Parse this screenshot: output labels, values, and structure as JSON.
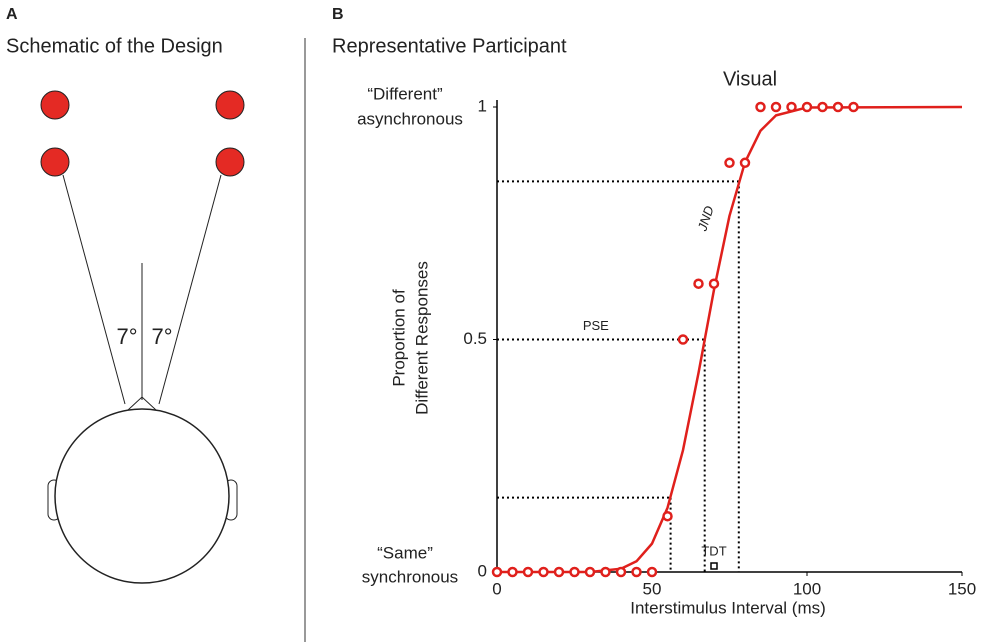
{
  "panel_a": {
    "label": "A",
    "title": "Schematic of the Design",
    "angle_left": "7°",
    "angle_right": "7°"
  },
  "chart_data": {
    "type": "scatter",
    "panel_label": "B",
    "title": "Representative Participant",
    "subtitle": "Visual",
    "x_label": "Interstimulus Interval (ms)",
    "y_label": [
      "Proportion of",
      "Different Responses"
    ],
    "y_category_labels": [
      {
        "value": 0,
        "label": [
          "“Same”",
          "synchronous"
        ]
      },
      {
        "value": 1,
        "label": [
          "“Different”",
          "asynchronous"
        ]
      }
    ],
    "xlim": [
      0,
      150
    ],
    "ylim": [
      0,
      1
    ],
    "xticks": [
      0,
      50,
      100,
      150
    ],
    "yticks": [
      0,
      0.5,
      1
    ],
    "points": {
      "color": "#e0201c",
      "x": [
        0,
        5,
        10,
        15,
        20,
        25,
        30,
        35,
        40,
        45,
        50,
        55,
        60,
        65,
        70,
        75,
        80,
        85,
        90,
        95,
        100,
        105,
        110,
        115
      ],
      "values": [
        0,
        0,
        0,
        0,
        0,
        0,
        0,
        0,
        0,
        0,
        0,
        0.12,
        0.5,
        0.62,
        0.62,
        0.88,
        0.88,
        1,
        1,
        1,
        1,
        1,
        1,
        1
      ]
    },
    "fit": {
      "color": "#e0201c",
      "x": [
        0,
        30,
        40,
        45,
        50,
        55,
        60,
        65,
        70,
        75,
        80,
        85,
        90,
        100,
        150
      ],
      "values": [
        0,
        0,
        0.007,
        0.023,
        0.061,
        0.138,
        0.262,
        0.428,
        0.607,
        0.766,
        0.881,
        0.949,
        0.982,
        0.999,
        1
      ]
    },
    "annotations": {
      "pse": {
        "label": "PSE",
        "x": 67,
        "y": 0.5
      },
      "jnd": {
        "label": "JND",
        "lower": {
          "x": 56,
          "y": 0.16
        },
        "upper": {
          "x": 78,
          "y": 0.84
        }
      },
      "tdt": {
        "label": "TDT",
        "x": 70
      }
    }
  }
}
